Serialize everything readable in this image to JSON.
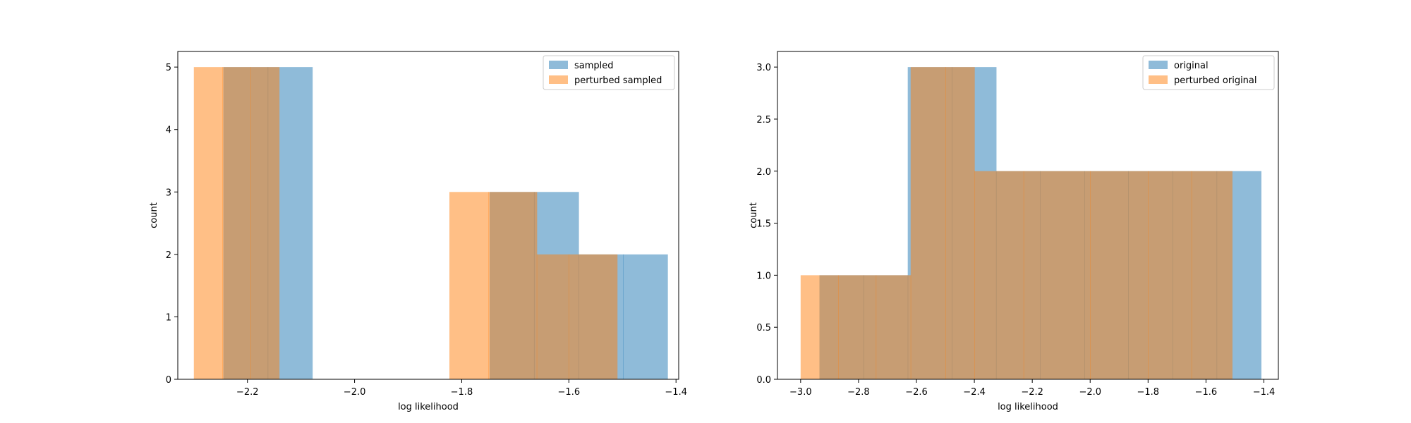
{
  "chart_data": [
    {
      "type": "histogram",
      "xlabel": "log likelihood",
      "ylabel": "count",
      "xlim": [
        -2.33,
        -1.395
      ],
      "ylim": [
        0,
        5.25
      ],
      "xticks": [
        -2.2,
        -2.0,
        -1.8,
        -1.6,
        -1.4
      ],
      "xtick_labels": [
        "−2.2",
        "−2.0",
        "−1.8",
        "−1.6",
        "−1.4"
      ],
      "yticks": [
        0,
        1,
        2,
        3,
        4,
        5
      ],
      "ytick_labels": [
        "0",
        "1",
        "2",
        "3",
        "4",
        "5"
      ],
      "legend": "top-right",
      "grid": false,
      "series": [
        {
          "name": "sampled",
          "color": "#1f77b4",
          "alpha": 0.5,
          "bins": [
            {
              "x0": -2.245,
              "x1": -2.162,
              "count": 5
            },
            {
              "x0": -2.162,
              "x1": -2.079,
              "count": 5
            },
            {
              "x0": -2.079,
              "x1": -1.996,
              "count": 0
            },
            {
              "x0": -1.996,
              "x1": -1.913,
              "count": 0
            },
            {
              "x0": -1.913,
              "x1": -1.83,
              "count": 0
            },
            {
              "x0": -1.83,
              "x1": -1.748,
              "count": 0
            },
            {
              "x0": -1.748,
              "x1": -1.665,
              "count": 3
            },
            {
              "x0": -1.665,
              "x1": -1.582,
              "count": 3
            },
            {
              "x0": -1.582,
              "x1": -1.499,
              "count": 2
            },
            {
              "x0": -1.499,
              "x1": -1.416,
              "count": 2
            }
          ]
        },
        {
          "name": "perturbed sampled",
          "color": "#ff7f0e",
          "alpha": 0.5,
          "bins": [
            {
              "x0": -2.3,
              "x1": -2.247,
              "count": 5
            },
            {
              "x0": -2.247,
              "x1": -2.194,
              "count": 5
            },
            {
              "x0": -2.194,
              "x1": -2.141,
              "count": 5
            },
            {
              "x0": -2.141,
              "x1": -2.088,
              "count": 0
            },
            {
              "x0": -2.088,
              "x1": -2.035,
              "count": 0
            },
            {
              "x0": -2.035,
              "x1": -1.982,
              "count": 0
            },
            {
              "x0": -1.982,
              "x1": -1.929,
              "count": 0
            },
            {
              "x0": -1.929,
              "x1": -1.876,
              "count": 0
            },
            {
              "x0": -1.876,
              "x1": -1.823,
              "count": 0
            },
            {
              "x0": -1.823,
              "x1": -1.75,
              "count": 3
            },
            {
              "x0": -1.75,
              "x1": -1.66,
              "count": 3
            },
            {
              "x0": -1.66,
              "x1": -1.6,
              "count": 2
            },
            {
              "x0": -1.6,
              "x1": -1.51,
              "count": 2
            }
          ]
        }
      ]
    },
    {
      "type": "histogram",
      "xlabel": "log likelihood",
      "ylabel": "count",
      "xlim": [
        -3.08,
        -1.35
      ],
      "ylim": [
        0,
        3.15
      ],
      "xticks": [
        -3.0,
        -2.8,
        -2.6,
        -2.4,
        -2.2,
        -2.0,
        -1.8,
        -1.6,
        -1.4
      ],
      "xtick_labels": [
        "−3.0",
        "−2.8",
        "−2.6",
        "−2.4",
        "−2.2",
        "−2.0",
        "−1.8",
        "−1.6",
        "−1.4"
      ],
      "yticks": [
        0.0,
        0.5,
        1.0,
        1.5,
        2.0,
        2.5,
        3.0
      ],
      "ytick_labels": [
        "0.0",
        "0.5",
        "1.0",
        "1.5",
        "2.0",
        "2.5",
        "3.0"
      ],
      "legend": "top-right",
      "grid": false,
      "series": [
        {
          "name": "original",
          "color": "#1f77b4",
          "alpha": 0.5,
          "bins": [
            {
              "x0": -2.935,
              "x1": -2.783,
              "count": 1
            },
            {
              "x0": -2.783,
              "x1": -2.63,
              "count": 1
            },
            {
              "x0": -2.63,
              "x1": -2.478,
              "count": 3
            },
            {
              "x0": -2.478,
              "x1": -2.325,
              "count": 3
            },
            {
              "x0": -2.325,
              "x1": -2.173,
              "count": 2
            },
            {
              "x0": -2.173,
              "x1": -2.02,
              "count": 2
            },
            {
              "x0": -2.02,
              "x1": -1.868,
              "count": 2
            },
            {
              "x0": -1.868,
              "x1": -1.715,
              "count": 2
            },
            {
              "x0": -1.715,
              "x1": -1.563,
              "count": 2
            },
            {
              "x0": -1.563,
              "x1": -1.41,
              "count": 2
            }
          ]
        },
        {
          "name": "perturbed original",
          "color": "#ff7f0e",
          "alpha": 0.5,
          "bins": [
            {
              "x0": -3.0,
              "x1": -2.87,
              "count": 1
            },
            {
              "x0": -2.87,
              "x1": -2.74,
              "count": 1
            },
            {
              "x0": -2.74,
              "x1": -2.62,
              "count": 1
            },
            {
              "x0": -2.62,
              "x1": -2.5,
              "count": 3
            },
            {
              "x0": -2.5,
              "x1": -2.4,
              "count": 3
            },
            {
              "x0": -2.4,
              "x1": -2.23,
              "count": 2
            },
            {
              "x0": -2.23,
              "x1": -2.0,
              "count": 2
            },
            {
              "x0": -2.0,
              "x1": -1.8,
              "count": 2
            },
            {
              "x0": -1.8,
              "x1": -1.65,
              "count": 2
            },
            {
              "x0": -1.65,
              "x1": -1.51,
              "count": 2
            }
          ]
        }
      ]
    }
  ]
}
